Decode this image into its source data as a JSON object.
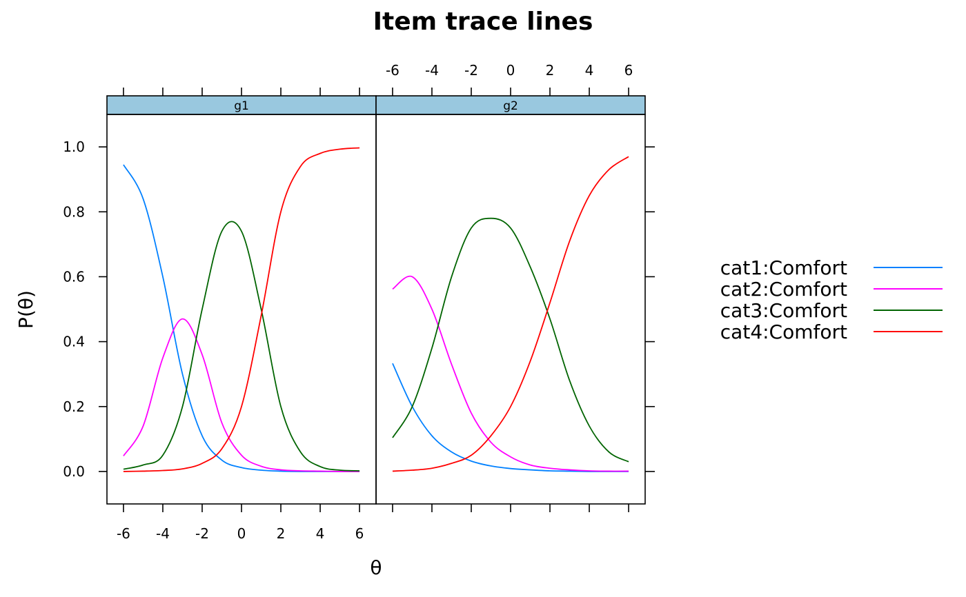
{
  "chart_data": {
    "type": "line",
    "title": "Item trace lines",
    "xlabel": "θ",
    "ylabel": "P(θ)",
    "xlim": [
      -6.84,
      6.84
    ],
    "ylim": [
      -0.1,
      1.1
    ],
    "x_ticks": [
      -6,
      -4,
      -2,
      0,
      2,
      4,
      6
    ],
    "x_tick_labels": [
      "-6",
      "-4",
      "-2",
      "0",
      "2",
      "4",
      "6"
    ],
    "y_ticks": [
      0.0,
      0.2,
      0.4,
      0.6,
      0.8,
      1.0
    ],
    "y_tick_labels": [
      "0.0",
      "0.2",
      "0.4",
      "0.6",
      "0.8",
      "1.0"
    ],
    "x": [
      -6,
      -5,
      -4,
      -3,
      -2,
      -1,
      0,
      1,
      2,
      3,
      4,
      5,
      6
    ],
    "panels": [
      {
        "name": "g1",
        "series": [
          {
            "name": "cat1:Comfort",
            "color": "#0080ff",
            "values": [
              0.945,
              0.84,
              0.6,
              0.3,
              0.11,
              0.035,
              0.012,
              0.004,
              0.001,
              0.0,
              0.0,
              0.0,
              0.0
            ]
          },
          {
            "name": "cat2:Comfort",
            "color": "#ff00ff",
            "values": [
              0.048,
              0.14,
              0.35,
              0.47,
              0.36,
              0.15,
              0.05,
              0.016,
              0.005,
              0.002,
              0.001,
              0.0,
              0.0
            ]
          },
          {
            "name": "cat3:Comfort",
            "color": "#006400",
            "values": [
              0.007,
              0.02,
              0.05,
              0.2,
              0.5,
              0.74,
              0.74,
              0.5,
              0.2,
              0.06,
              0.015,
              0.004,
              0.002
            ]
          },
          {
            "name": "cat4:Comfort",
            "color": "#ff0000",
            "values": [
              0.0,
              0.001,
              0.003,
              0.008,
              0.025,
              0.07,
              0.2,
              0.48,
              0.8,
              0.94,
              0.98,
              0.993,
              0.997
            ]
          }
        ]
      },
      {
        "name": "g2",
        "series": [
          {
            "name": "cat1:Comfort",
            "color": "#0080ff",
            "values": [
              0.333,
              0.2,
              0.11,
              0.06,
              0.032,
              0.017,
              0.009,
              0.005,
              0.002,
              0.001,
              0.0,
              0.0,
              0.0
            ]
          },
          {
            "name": "cat2:Comfort",
            "color": "#ff00ff",
            "values": [
              0.562,
              0.6,
              0.5,
              0.33,
              0.18,
              0.09,
              0.045,
              0.02,
              0.01,
              0.005,
              0.002,
              0.001,
              0.001
            ]
          },
          {
            "name": "cat3:Comfort",
            "color": "#006400",
            "values": [
              0.104,
              0.2,
              0.38,
              0.6,
              0.75,
              0.78,
              0.75,
              0.63,
              0.47,
              0.28,
              0.14,
              0.06,
              0.03
            ]
          },
          {
            "name": "cat4:Comfort",
            "color": "#ff0000",
            "values": [
              0.001,
              0.004,
              0.01,
              0.025,
              0.05,
              0.11,
              0.2,
              0.34,
              0.52,
              0.71,
              0.85,
              0.93,
              0.97
            ]
          }
        ]
      }
    ],
    "legend": [
      "cat1:Comfort",
      "cat2:Comfort",
      "cat3:Comfort",
      "cat4:Comfort"
    ],
    "legend_position": "right"
  }
}
